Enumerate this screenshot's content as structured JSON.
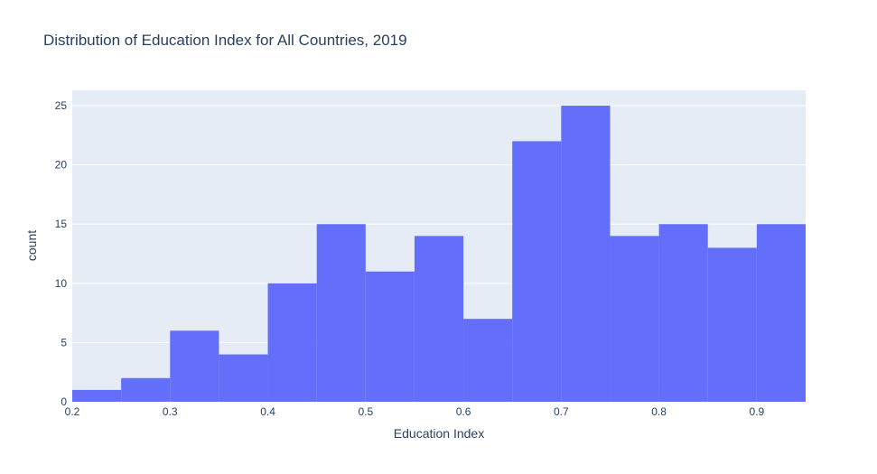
{
  "chart_data": {
    "type": "bar",
    "title": "Distribution of Education Index for All Countries, 2019",
    "xlabel": "Education Index",
    "ylabel": "count",
    "bins": [
      {
        "x0": 0.2,
        "x1": 0.25,
        "count": 1
      },
      {
        "x0": 0.25,
        "x1": 0.3,
        "count": 2
      },
      {
        "x0": 0.3,
        "x1": 0.35,
        "count": 6
      },
      {
        "x0": 0.35,
        "x1": 0.4,
        "count": 4
      },
      {
        "x0": 0.4,
        "x1": 0.45,
        "count": 10
      },
      {
        "x0": 0.45,
        "x1": 0.5,
        "count": 15
      },
      {
        "x0": 0.5,
        "x1": 0.55,
        "count": 11
      },
      {
        "x0": 0.55,
        "x1": 0.6,
        "count": 14
      },
      {
        "x0": 0.6,
        "x1": 0.65,
        "count": 7
      },
      {
        "x0": 0.65,
        "x1": 0.7,
        "count": 22
      },
      {
        "x0": 0.7,
        "x1": 0.75,
        "count": 25
      },
      {
        "x0": 0.75,
        "x1": 0.8,
        "count": 14
      },
      {
        "x0": 0.8,
        "x1": 0.85,
        "count": 15
      },
      {
        "x0": 0.85,
        "x1": 0.9,
        "count": 13
      },
      {
        "x0": 0.9,
        "x1": 0.95,
        "count": 15
      }
    ],
    "xlim": [
      0.2,
      0.95
    ],
    "ylim": [
      0,
      26.3
    ],
    "xticks": [
      "0.2",
      "0.3",
      "0.4",
      "0.5",
      "0.6",
      "0.7",
      "0.8",
      "0.9"
    ],
    "yticks": [
      "0",
      "5",
      "10",
      "15",
      "20",
      "25"
    ],
    "grid": true,
    "colors": {
      "bar": "#636efa",
      "plot_background": "#e5ecf6",
      "grid": "#ffffff",
      "text": "#2a3f5f"
    }
  }
}
